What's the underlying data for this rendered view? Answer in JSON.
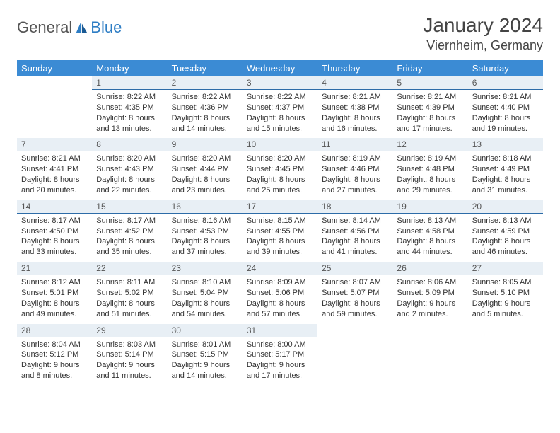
{
  "logo": {
    "text1": "General",
    "text2": "Blue"
  },
  "title": "January 2024",
  "location": "Viernheim, Germany",
  "colors": {
    "header_bg": "#3b8bd4",
    "header_text": "#ffffff",
    "daynum_bg": "#e8eff5",
    "daynum_border": "#2d6ca8",
    "body_text": "#333333",
    "logo_blue": "#2d7dc4",
    "logo_gray": "#555555",
    "background": "#ffffff"
  },
  "dayHeaders": [
    "Sunday",
    "Monday",
    "Tuesday",
    "Wednesday",
    "Thursday",
    "Friday",
    "Saturday"
  ],
  "weeks": [
    [
      null,
      {
        "n": "1",
        "sr": "8:22 AM",
        "ss": "4:35 PM",
        "dl": "8 hours and 13 minutes."
      },
      {
        "n": "2",
        "sr": "8:22 AM",
        "ss": "4:36 PM",
        "dl": "8 hours and 14 minutes."
      },
      {
        "n": "3",
        "sr": "8:22 AM",
        "ss": "4:37 PM",
        "dl": "8 hours and 15 minutes."
      },
      {
        "n": "4",
        "sr": "8:21 AM",
        "ss": "4:38 PM",
        "dl": "8 hours and 16 minutes."
      },
      {
        "n": "5",
        "sr": "8:21 AM",
        "ss": "4:39 PM",
        "dl": "8 hours and 17 minutes."
      },
      {
        "n": "6",
        "sr": "8:21 AM",
        "ss": "4:40 PM",
        "dl": "8 hours and 19 minutes."
      }
    ],
    [
      {
        "n": "7",
        "sr": "8:21 AM",
        "ss": "4:41 PM",
        "dl": "8 hours and 20 minutes."
      },
      {
        "n": "8",
        "sr": "8:20 AM",
        "ss": "4:43 PM",
        "dl": "8 hours and 22 minutes."
      },
      {
        "n": "9",
        "sr": "8:20 AM",
        "ss": "4:44 PM",
        "dl": "8 hours and 23 minutes."
      },
      {
        "n": "10",
        "sr": "8:20 AM",
        "ss": "4:45 PM",
        "dl": "8 hours and 25 minutes."
      },
      {
        "n": "11",
        "sr": "8:19 AM",
        "ss": "4:46 PM",
        "dl": "8 hours and 27 minutes."
      },
      {
        "n": "12",
        "sr": "8:19 AM",
        "ss": "4:48 PM",
        "dl": "8 hours and 29 minutes."
      },
      {
        "n": "13",
        "sr": "8:18 AM",
        "ss": "4:49 PM",
        "dl": "8 hours and 31 minutes."
      }
    ],
    [
      {
        "n": "14",
        "sr": "8:17 AM",
        "ss": "4:50 PM",
        "dl": "8 hours and 33 minutes."
      },
      {
        "n": "15",
        "sr": "8:17 AM",
        "ss": "4:52 PM",
        "dl": "8 hours and 35 minutes."
      },
      {
        "n": "16",
        "sr": "8:16 AM",
        "ss": "4:53 PM",
        "dl": "8 hours and 37 minutes."
      },
      {
        "n": "17",
        "sr": "8:15 AM",
        "ss": "4:55 PM",
        "dl": "8 hours and 39 minutes."
      },
      {
        "n": "18",
        "sr": "8:14 AM",
        "ss": "4:56 PM",
        "dl": "8 hours and 41 minutes."
      },
      {
        "n": "19",
        "sr": "8:13 AM",
        "ss": "4:58 PM",
        "dl": "8 hours and 44 minutes."
      },
      {
        "n": "20",
        "sr": "8:13 AM",
        "ss": "4:59 PM",
        "dl": "8 hours and 46 minutes."
      }
    ],
    [
      {
        "n": "21",
        "sr": "8:12 AM",
        "ss": "5:01 PM",
        "dl": "8 hours and 49 minutes."
      },
      {
        "n": "22",
        "sr": "8:11 AM",
        "ss": "5:02 PM",
        "dl": "8 hours and 51 minutes."
      },
      {
        "n": "23",
        "sr": "8:10 AM",
        "ss": "5:04 PM",
        "dl": "8 hours and 54 minutes."
      },
      {
        "n": "24",
        "sr": "8:09 AM",
        "ss": "5:06 PM",
        "dl": "8 hours and 57 minutes."
      },
      {
        "n": "25",
        "sr": "8:07 AM",
        "ss": "5:07 PM",
        "dl": "8 hours and 59 minutes."
      },
      {
        "n": "26",
        "sr": "8:06 AM",
        "ss": "5:09 PM",
        "dl": "9 hours and 2 minutes."
      },
      {
        "n": "27",
        "sr": "8:05 AM",
        "ss": "5:10 PM",
        "dl": "9 hours and 5 minutes."
      }
    ],
    [
      {
        "n": "28",
        "sr": "8:04 AM",
        "ss": "5:12 PM",
        "dl": "9 hours and 8 minutes."
      },
      {
        "n": "29",
        "sr": "8:03 AM",
        "ss": "5:14 PM",
        "dl": "9 hours and 11 minutes."
      },
      {
        "n": "30",
        "sr": "8:01 AM",
        "ss": "5:15 PM",
        "dl": "9 hours and 14 minutes."
      },
      {
        "n": "31",
        "sr": "8:00 AM",
        "ss": "5:17 PM",
        "dl": "9 hours and 17 minutes."
      },
      null,
      null,
      null
    ]
  ],
  "labels": {
    "sunrise": "Sunrise:",
    "sunset": "Sunset:",
    "daylight": "Daylight:"
  }
}
